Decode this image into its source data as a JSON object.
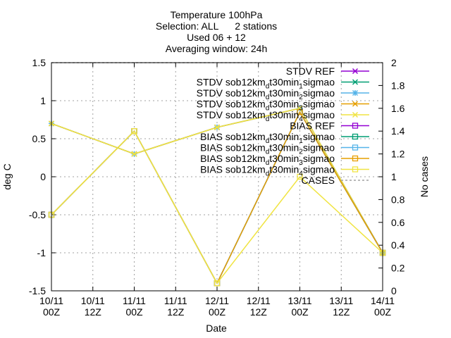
{
  "chart_data": {
    "type": "line",
    "title": [
      "Temperature 100hPa",
      "Selection: ALL      2 stations",
      "Used 06 + 12",
      "Averaging window: 24h"
    ],
    "xlabel": "Date",
    "ylabel": "deg C",
    "y2label": "No cases",
    "ylim": [
      -1.5,
      1.5
    ],
    "y2lim": [
      0,
      2
    ],
    "yticks": [
      "1.5",
      "1",
      "0.5",
      "0",
      "-0.5",
      "-1",
      "-1.5"
    ],
    "y2ticks": [
      "2",
      "1.8",
      "1.6",
      "1.4",
      "1.2",
      "1",
      "0.8",
      "0.6",
      "0.4",
      "0.2",
      "0"
    ],
    "xticks": [
      [
        "10/11",
        "00Z"
      ],
      [
        "10/11",
        "12Z"
      ],
      [
        "11/11",
        "00Z"
      ],
      [
        "11/11",
        "12Z"
      ],
      [
        "12/11",
        "00Z"
      ],
      [
        "12/11",
        "12Z"
      ],
      [
        "13/11",
        "00Z"
      ],
      [
        "13/11",
        "12Z"
      ],
      [
        "14/11",
        "00Z"
      ]
    ],
    "x": [
      "10/11 00Z",
      "11/11 00Z",
      "12/11 00Z",
      "13/11 00Z",
      "14/11 00Z"
    ],
    "legend_position": "top-right",
    "series": [
      {
        "name": "STDV REF",
        "legend": [
          "STDV REF"
        ],
        "axis": "y",
        "color": "#9400d3",
        "marker": "x",
        "dash": false,
        "values": [
          0.7,
          0.3,
          0.65,
          0.9,
          -1.0
        ]
      },
      {
        "name": "STDV sob12km_d t30min_1 sigmao",
        "legend": [
          "STDV sob12km",
          "d",
          "t30min",
          "1",
          "sigmao"
        ],
        "axis": "y",
        "color": "#009e73",
        "marker": "x",
        "dash": false,
        "values": [
          0.7,
          0.3,
          0.65,
          0.9,
          -1.0
        ]
      },
      {
        "name": "STDV sob12km_d t30min_2 sigmao",
        "legend": [
          "STDV sob12km",
          "d",
          "t30min",
          "2",
          "sigmao"
        ],
        "axis": "y",
        "color": "#56b4e9",
        "marker": "star",
        "dash": false,
        "values": [
          0.7,
          0.3,
          0.65,
          0.9,
          -1.0
        ]
      },
      {
        "name": "STDV sob12km_d t30min_3 sigmao",
        "legend": [
          "STDV sob12km",
          "d",
          "t30min",
          "3",
          "sigmao"
        ],
        "axis": "y",
        "color": "#e69f00",
        "marker": "x",
        "dash": false,
        "values": [
          0.7,
          0.3,
          0.65,
          0.9,
          -1.0
        ]
      },
      {
        "name": "STDV sob12km_d t30min_4 sigmao",
        "legend": [
          "STDV sob12km",
          "d",
          "t30min",
          "4",
          "sigmao"
        ],
        "axis": "y",
        "color": "#f0e442",
        "marker": "x",
        "dash": false,
        "values": [
          0.7,
          0.3,
          0.65,
          0.9,
          -1.0
        ]
      },
      {
        "name": "BIAS REF",
        "legend": [
          "BIAS REF"
        ],
        "axis": "y",
        "color": "#9400d3",
        "marker": "square",
        "dash": false,
        "values": [
          -0.5,
          0.6,
          -1.4,
          0.85,
          -1.0
        ]
      },
      {
        "name": "BIAS sob12km_d t30min_1 sigmao",
        "legend": [
          "BIAS sob12km",
          "d",
          "t30min",
          "1",
          "sigmao"
        ],
        "axis": "y",
        "color": "#009e73",
        "marker": "square",
        "dash": false,
        "values": [
          -0.5,
          0.6,
          -1.4,
          0.85,
          -1.0
        ]
      },
      {
        "name": "BIAS sob12km_d t30min_2 sigmao",
        "legend": [
          "BIAS sob12km",
          "d",
          "t30min",
          "2",
          "sigmao"
        ],
        "axis": "y",
        "color": "#56b4e9",
        "marker": "square",
        "dash": false,
        "values": [
          -0.5,
          0.6,
          -1.4,
          0.85,
          -1.0
        ]
      },
      {
        "name": "BIAS sob12km_d t30min_3 sigmao",
        "legend": [
          "BIAS sob12km",
          "d",
          "t30min",
          "3",
          "sigmao"
        ],
        "axis": "y",
        "color": "#e69f00",
        "marker": "square",
        "dash": false,
        "values": [
          -0.5,
          0.6,
          -1.4,
          0.85,
          -1.0
        ]
      },
      {
        "name": "BIAS sob12km_d t30min_4 sigmao",
        "legend": [
          "BIAS sob12km",
          "d",
          "t30min",
          "4",
          "sigmao"
        ],
        "axis": "y",
        "color": "#f0e442",
        "marker": "square",
        "dash": false,
        "values": [
          -0.5,
          0.6,
          -1.4,
          0.0,
          -1.0
        ]
      },
      {
        "name": "CASES",
        "legend": [
          "CASES"
        ],
        "axis": "y2",
        "color": "#a0a0a0",
        "marker": "none",
        "dash": true,
        "values": [
          2,
          2,
          2,
          2,
          2
        ]
      }
    ]
  }
}
